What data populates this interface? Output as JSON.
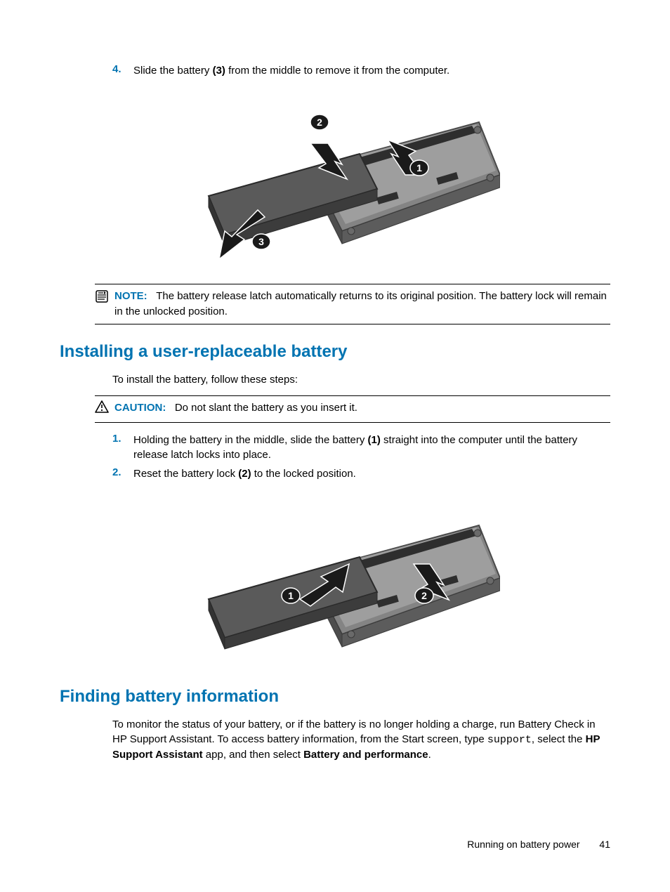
{
  "step4": {
    "num": "4.",
    "text_a": "Slide the battery ",
    "bold": "(3)",
    "text_b": " from the middle to remove it from the computer."
  },
  "diagram1": {
    "callouts": [
      "1",
      "2",
      "3"
    ],
    "laptop_fill": "#848484",
    "laptop_edge": "#b8b8b8",
    "battery_fill": "#5a5a5a",
    "arrow_fill": "#1a1a1a",
    "callout_bg": "#1a1a1a",
    "callout_fg": "#ffffff"
  },
  "note": {
    "label": "NOTE:",
    "text": "The battery release latch automatically returns to its original position. The battery lock will remain in the unlocked position."
  },
  "section1": {
    "heading": "Installing a user-replaceable battery",
    "intro": "To install the battery, follow these steps:"
  },
  "caution": {
    "label": "CAUTION:",
    "text": "Do not slant the battery as you insert it."
  },
  "install_step1": {
    "num": "1.",
    "text_a": "Holding the battery in the middle, slide the battery ",
    "bold": "(1)",
    "text_b": " straight into the computer until the battery release latch locks into place."
  },
  "install_step2": {
    "num": "2.",
    "text_a": "Reset the battery lock ",
    "bold": "(2)",
    "text_b": " to the locked position."
  },
  "diagram2": {
    "callouts": [
      "1",
      "2"
    ],
    "laptop_fill": "#848484",
    "laptop_edge": "#b8b8b8",
    "battery_fill": "#5a5a5a",
    "arrow_fill": "#1a1a1a",
    "callout_bg": "#1a1a1a",
    "callout_fg": "#ffffff"
  },
  "section2": {
    "heading": "Finding battery information",
    "para_a": "To monitor the status of your battery, or if the battery is no longer holding a charge, run Battery Check in HP Support Assistant. To access battery information, from the Start screen, type ",
    "mono": "support",
    "para_b": ", select the ",
    "bold1": "HP Support Assistant",
    "para_c": " app, and then select ",
    "bold2": "Battery and performance",
    "para_d": "."
  },
  "footer": {
    "section": "Running on battery power",
    "page": "41"
  }
}
